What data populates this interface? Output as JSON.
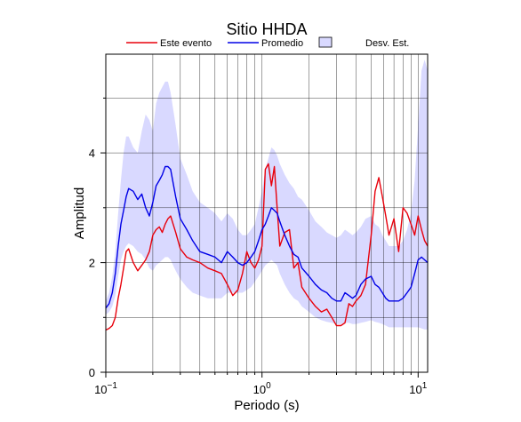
{
  "chart_data": {
    "type": "line",
    "title": "Sitio HHDA",
    "xlabel": "Periodo (s)",
    "ylabel": "Amplitud",
    "x_scale": "log",
    "xlim": [
      0.1,
      11.5
    ],
    "ylim": [
      0,
      5.8
    ],
    "grid": true,
    "legend_placement": "top",
    "x_ticks": [
      {
        "value": 0.1,
        "base": "10",
        "exp": "−1"
      },
      {
        "value": 1,
        "label": "10",
        "exp": "0"
      },
      {
        "value": 10,
        "base": "10",
        "exp": "1"
      }
    ],
    "y_ticks": [
      0,
      2,
      4
    ],
    "legend": [
      {
        "label": "Este evento",
        "color": "#e8000b",
        "kind": "line"
      },
      {
        "label": "Promedio",
        "color": "#0000e6",
        "kind": "line"
      },
      {
        "label": "Desv. Est.",
        "color": "#d9d9ff",
        "kind": "box"
      }
    ],
    "series": [
      {
        "name": "Este evento",
        "color": "#e8000b",
        "x": [
          0.1,
          0.105,
          0.11,
          0.115,
          0.12,
          0.125,
          0.13,
          0.135,
          0.14,
          0.15,
          0.16,
          0.17,
          0.18,
          0.19,
          0.2,
          0.21,
          0.22,
          0.23,
          0.24,
          0.25,
          0.26,
          0.28,
          0.3,
          0.33,
          0.36,
          0.4,
          0.45,
          0.5,
          0.55,
          0.6,
          0.65,
          0.7,
          0.75,
          0.8,
          0.85,
          0.9,
          0.95,
          1.0,
          1.05,
          1.1,
          1.15,
          1.2,
          1.25,
          1.3,
          1.4,
          1.5,
          1.6,
          1.7,
          1.8,
          2.0,
          2.2,
          2.4,
          2.6,
          2.8,
          3.0,
          3.2,
          3.4,
          3.6,
          3.8,
          4.0,
          4.3,
          4.6,
          5.0,
          5.3,
          5.6,
          5.9,
          6.2,
          6.5,
          7.0,
          7.5,
          8.0,
          8.5,
          9.0,
          9.5,
          10.0,
          10.5,
          11.0,
          11.5
        ],
        "y": [
          0.77,
          0.8,
          0.85,
          1.0,
          1.35,
          1.6,
          1.9,
          2.2,
          2.25,
          2.0,
          1.85,
          1.95,
          2.05,
          2.2,
          2.5,
          2.6,
          2.65,
          2.55,
          2.7,
          2.8,
          2.85,
          2.55,
          2.25,
          2.1,
          2.05,
          2.0,
          1.9,
          1.85,
          1.8,
          1.6,
          1.4,
          1.5,
          1.8,
          2.2,
          2.0,
          1.9,
          2.05,
          2.3,
          3.7,
          3.8,
          3.4,
          3.75,
          3.0,
          2.3,
          2.55,
          2.6,
          1.9,
          2.0,
          1.55,
          1.35,
          1.2,
          1.1,
          1.15,
          1.0,
          0.85,
          0.85,
          0.9,
          1.25,
          1.2,
          1.3,
          1.4,
          1.6,
          2.5,
          3.3,
          3.55,
          3.2,
          2.85,
          2.5,
          2.8,
          2.2,
          3.0,
          2.9,
          2.7,
          2.5,
          2.85,
          2.6,
          2.4,
          2.3
        ]
      },
      {
        "name": "Promedio",
        "color": "#0000e6",
        "x": [
          0.1,
          0.105,
          0.11,
          0.115,
          0.12,
          0.125,
          0.13,
          0.135,
          0.14,
          0.15,
          0.16,
          0.17,
          0.18,
          0.19,
          0.2,
          0.21,
          0.22,
          0.23,
          0.24,
          0.25,
          0.26,
          0.28,
          0.3,
          0.33,
          0.36,
          0.4,
          0.45,
          0.5,
          0.55,
          0.6,
          0.65,
          0.7,
          0.75,
          0.8,
          0.85,
          0.9,
          0.95,
          1.0,
          1.05,
          1.1,
          1.15,
          1.2,
          1.25,
          1.3,
          1.4,
          1.5,
          1.6,
          1.7,
          1.8,
          2.0,
          2.2,
          2.4,
          2.6,
          2.8,
          3.0,
          3.2,
          3.4,
          3.6,
          3.8,
          4.0,
          4.3,
          4.6,
          5.0,
          5.3,
          5.6,
          5.9,
          6.2,
          6.5,
          7.0,
          7.5,
          8.0,
          8.5,
          9.0,
          9.5,
          10.0,
          10.5,
          11.0,
          11.5
        ],
        "y": [
          1.17,
          1.25,
          1.45,
          1.8,
          2.3,
          2.7,
          2.95,
          3.2,
          3.35,
          3.3,
          3.15,
          3.25,
          3.0,
          2.85,
          3.1,
          3.4,
          3.5,
          3.6,
          3.75,
          3.75,
          3.7,
          3.2,
          2.8,
          2.6,
          2.4,
          2.2,
          2.15,
          2.1,
          2.0,
          2.2,
          2.1,
          2.0,
          1.95,
          2.0,
          2.1,
          2.2,
          2.4,
          2.6,
          2.7,
          2.85,
          3.0,
          2.95,
          2.9,
          2.75,
          2.5,
          2.3,
          2.15,
          2.1,
          1.9,
          1.75,
          1.6,
          1.5,
          1.45,
          1.35,
          1.3,
          1.3,
          1.45,
          1.4,
          1.35,
          1.4,
          1.6,
          1.7,
          1.75,
          1.6,
          1.55,
          1.45,
          1.35,
          1.3,
          1.3,
          1.3,
          1.35,
          1.45,
          1.55,
          1.8,
          2.05,
          2.1,
          2.05,
          2.0
        ]
      }
    ],
    "band": {
      "name": "Desv. Est.",
      "color": "#d9d9ff",
      "x": [
        0.1,
        0.105,
        0.11,
        0.115,
        0.12,
        0.125,
        0.13,
        0.135,
        0.14,
        0.15,
        0.16,
        0.17,
        0.18,
        0.19,
        0.2,
        0.21,
        0.22,
        0.23,
        0.24,
        0.25,
        0.26,
        0.28,
        0.3,
        0.33,
        0.36,
        0.4,
        0.45,
        0.5,
        0.55,
        0.6,
        0.65,
        0.7,
        0.75,
        0.8,
        0.85,
        0.9,
        0.95,
        1.0,
        1.05,
        1.1,
        1.15,
        1.2,
        1.25,
        1.3,
        1.4,
        1.5,
        1.6,
        1.7,
        1.8,
        2.0,
        2.2,
        2.4,
        2.6,
        2.8,
        3.0,
        3.2,
        3.4,
        3.6,
        3.8,
        4.0,
        4.3,
        4.6,
        5.0,
        5.3,
        5.6,
        5.9,
        6.2,
        6.5,
        7.0,
        7.5,
        8.0,
        8.5,
        9.0,
        9.5,
        10.0,
        10.5,
        11.0,
        11.5
      ],
      "upper": [
        1.3,
        1.45,
        1.75,
        2.2,
        2.9,
        3.5,
        4.0,
        4.3,
        4.3,
        4.1,
        4.0,
        4.4,
        4.7,
        4.6,
        4.4,
        4.9,
        5.1,
        5.2,
        5.3,
        5.3,
        5.1,
        4.5,
        3.9,
        3.6,
        3.3,
        3.1,
        3.0,
        2.9,
        2.75,
        2.9,
        2.8,
        2.6,
        2.5,
        2.5,
        2.6,
        2.7,
        3.0,
        3.3,
        3.7,
        3.9,
        4.1,
        4.05,
        3.95,
        3.8,
        3.6,
        3.45,
        3.35,
        3.2,
        3.15,
        2.95,
        2.75,
        2.65,
        2.55,
        2.5,
        2.45,
        2.5,
        2.6,
        2.55,
        2.5,
        2.55,
        2.65,
        2.8,
        2.85,
        2.7,
        2.65,
        2.5,
        2.4,
        2.3,
        2.3,
        2.3,
        2.4,
        2.6,
        2.9,
        3.5,
        4.5,
        5.5,
        5.7,
        5.5
      ],
      "lower": [
        1.05,
        1.1,
        1.2,
        1.4,
        1.75,
        2.05,
        2.2,
        2.3,
        2.35,
        2.3,
        2.2,
        2.15,
        2.05,
        1.9,
        1.85,
        1.95,
        2.0,
        2.05,
        2.1,
        2.1,
        2.05,
        1.85,
        1.7,
        1.55,
        1.45,
        1.4,
        1.35,
        1.35,
        1.35,
        1.45,
        1.45,
        1.45,
        1.45,
        1.5,
        1.55,
        1.65,
        1.75,
        1.85,
        1.95,
        2.0,
        2.05,
        2.0,
        1.95,
        1.8,
        1.6,
        1.45,
        1.35,
        1.3,
        1.2,
        1.1,
        1.0,
        0.95,
        0.92,
        0.9,
        0.88,
        0.88,
        0.9,
        0.9,
        0.88,
        0.88,
        0.9,
        0.92,
        0.95,
        0.92,
        0.9,
        0.88,
        0.85,
        0.82,
        0.82,
        0.82,
        0.82,
        0.82,
        0.82,
        0.82,
        0.82,
        0.8,
        0.78,
        0.78
      ]
    }
  }
}
